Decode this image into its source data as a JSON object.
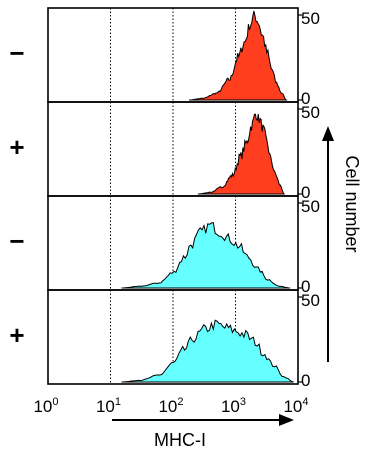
{
  "chart_data": {
    "type": "area",
    "xlabel": "MHC-I",
    "ylabel": "Cell number",
    "x_scale": "log",
    "xlim": [
      1,
      10000
    ],
    "x_ticks": [
      {
        "base": "10",
        "exp": "0"
      },
      {
        "base": "10",
        "exp": "1"
      },
      {
        "base": "10",
        "exp": "2"
      },
      {
        "base": "10",
        "exp": "3"
      },
      {
        "base": "10",
        "exp": "4"
      }
    ],
    "ylim": [
      0,
      50
    ],
    "y_tick_labels": [
      "0",
      "50"
    ],
    "grid": "dotted vertical lines at 10^1, 10^2, 10^3",
    "panels": [
      {
        "sign": "−",
        "color": "#ff3d1f",
        "peak_x": 2000,
        "peak_y": 50,
        "x": [
          180,
          300,
          500,
          800,
          1100,
          1400,
          1700,
          2000,
          2300,
          2700,
          3200,
          3800,
          4500,
          5500,
          6500
        ],
        "y": [
          0,
          1,
          4,
          12,
          25,
          34,
          44,
          50,
          46,
          38,
          28,
          18,
          10,
          4,
          0
        ]
      },
      {
        "sign": "+",
        "color": "#ff3d1f",
        "peak_x": 2100,
        "peak_y": 47,
        "x": [
          250,
          400,
          600,
          900,
          1200,
          1500,
          1800,
          2100,
          2400,
          2800,
          3200,
          3700,
          4300,
          5200,
          6000
        ],
        "y": [
          0,
          1,
          4,
          11,
          22,
          30,
          40,
          47,
          44,
          38,
          30,
          20,
          12,
          5,
          0
        ]
      },
      {
        "sign": "−",
        "color": "#66ffff",
        "peak_x": 400,
        "peak_y": 37,
        "x": [
          15,
          30,
          60,
          100,
          150,
          200,
          280,
          400,
          550,
          800,
          1100,
          1600,
          2300,
          3300,
          5000,
          7500
        ],
        "y": [
          0,
          1,
          3,
          9,
          18,
          26,
          33,
          37,
          33,
          29,
          25,
          18,
          11,
          5,
          1,
          0
        ]
      },
      {
        "sign": "+",
        "color": "#66ffff",
        "peak_x": 500,
        "peak_y": 34,
        "x": [
          15,
          30,
          60,
          100,
          150,
          220,
          320,
          500,
          700,
          1000,
          1400,
          2000,
          2800,
          4000,
          6000,
          8500
        ],
        "y": [
          0,
          1,
          4,
          11,
          19,
          26,
          31,
          34,
          32,
          30,
          28,
          24,
          17,
          10,
          3,
          0
        ]
      }
    ]
  }
}
